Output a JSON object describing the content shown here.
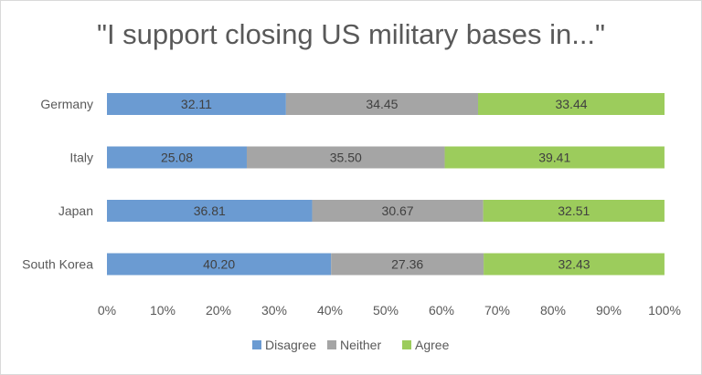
{
  "chart_data": {
    "type": "bar",
    "orientation": "horizontal",
    "stacked": true,
    "title": "\"I support closing US military bases in...\"",
    "categories": [
      "Germany",
      "Italy",
      "Japan",
      "South Korea"
    ],
    "series": [
      {
        "name": "Disagree",
        "color": "#6b9bd2",
        "values": [
          32.11,
          25.08,
          36.81,
          40.2
        ]
      },
      {
        "name": "Neither",
        "color": "#a5a5a5",
        "values": [
          34.45,
          35.5,
          30.67,
          27.36
        ]
      },
      {
        "name": "Agree",
        "color": "#9ccc5c",
        "values": [
          33.44,
          39.41,
          32.51,
          32.43
        ]
      }
    ],
    "value_labels": [
      [
        "32.11",
        "34.45",
        "33.44"
      ],
      [
        "25.08",
        "35.50",
        "39.41"
      ],
      [
        "36.81",
        "30.67",
        "32.51"
      ],
      [
        "40.20",
        "27.36",
        "32.43"
      ]
    ],
    "x_ticks": [
      "0%",
      "10%",
      "20%",
      "30%",
      "40%",
      "50%",
      "60%",
      "70%",
      "80%",
      "90%",
      "100%"
    ],
    "xlim": [
      0,
      100
    ],
    "grid": false,
    "legend_position": "bottom"
  }
}
